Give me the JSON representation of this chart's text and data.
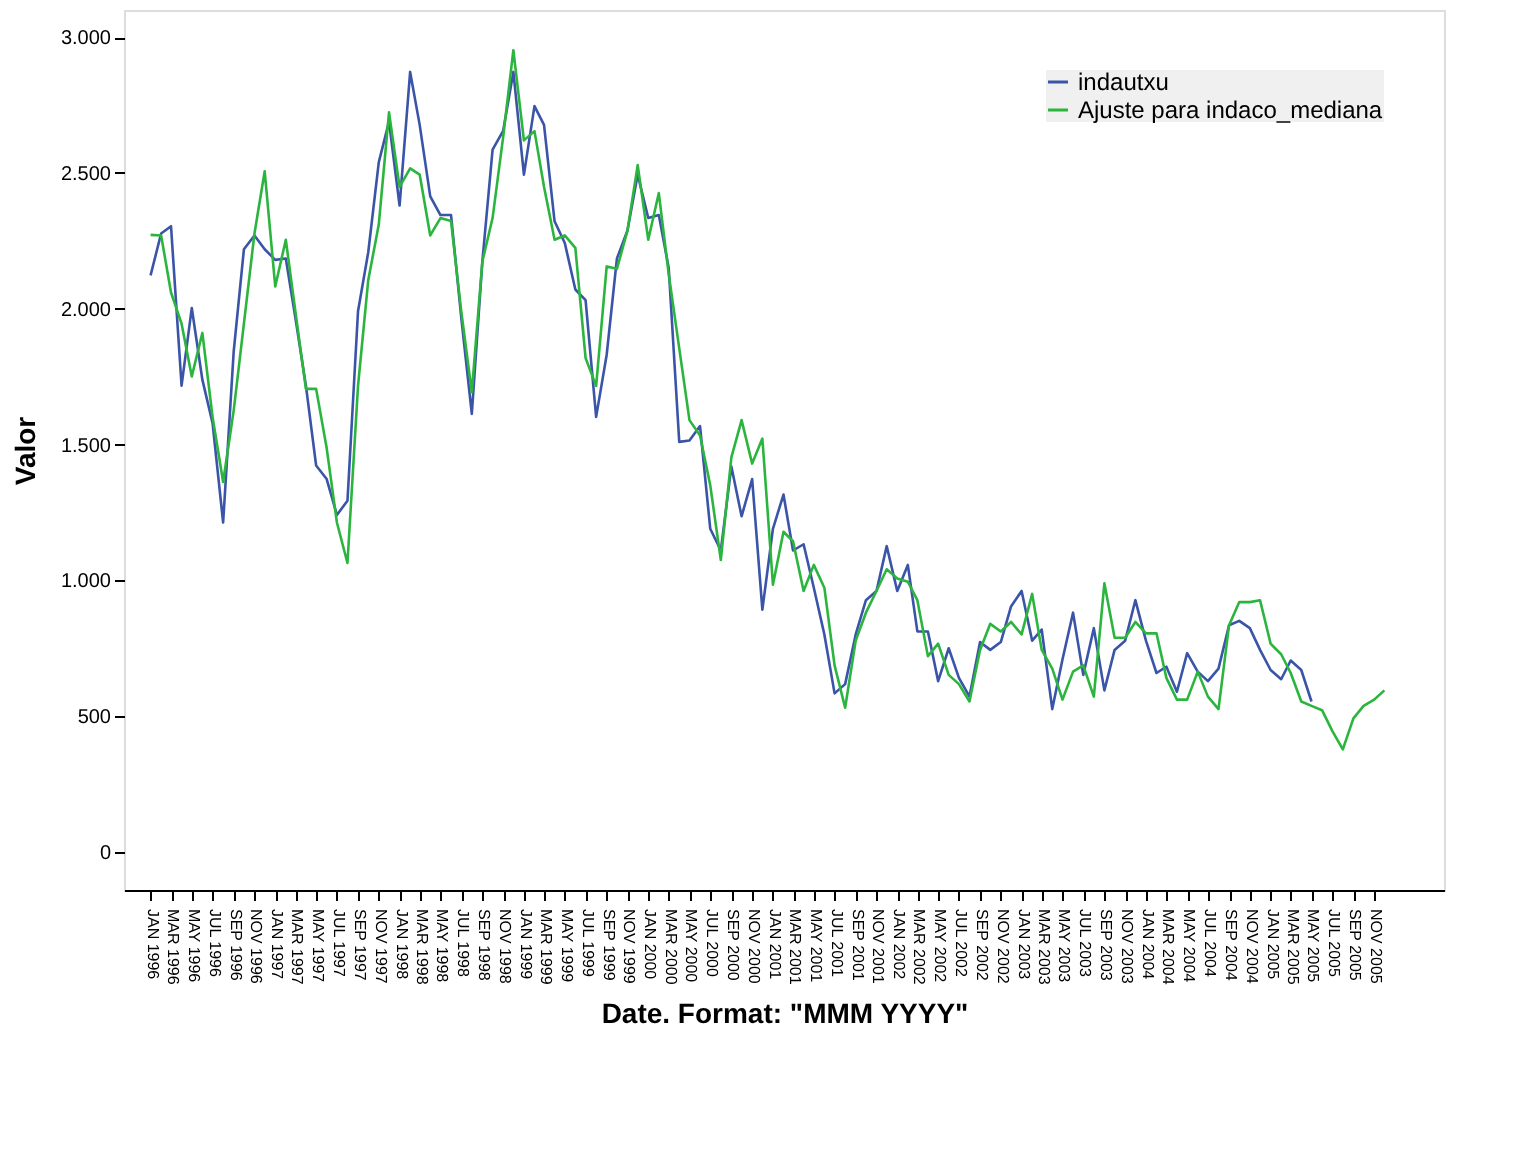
{
  "chart_data": {
    "type": "line",
    "xlabel": "Date.  Format:  \"MMM YYYY\"",
    "ylabel": "Valor",
    "x": [
      "1996-01",
      "1996-02",
      "1996-03",
      "1996-04",
      "1996-05",
      "1996-06",
      "1996-07",
      "1996-08",
      "1996-09",
      "1996-10",
      "1996-11",
      "1996-12",
      "1997-01",
      "1997-02",
      "1997-03",
      "1997-04",
      "1997-05",
      "1997-06",
      "1997-07",
      "1997-08",
      "1997-09",
      "1997-10",
      "1997-11",
      "1997-12",
      "1998-01",
      "1998-02",
      "1998-03",
      "1998-04",
      "1998-05",
      "1998-06",
      "1998-07",
      "1998-08",
      "1998-09",
      "1998-10",
      "1998-11",
      "1998-12",
      "1999-01",
      "1999-02",
      "1999-03",
      "1999-04",
      "1999-05",
      "1999-06",
      "1999-07",
      "1999-08",
      "1999-09",
      "1999-10",
      "1999-11",
      "1999-12",
      "2000-01",
      "2000-02",
      "2000-03",
      "2000-04",
      "2000-05",
      "2000-06",
      "2000-07",
      "2000-08",
      "2000-09",
      "2000-10",
      "2000-11",
      "2000-12",
      "2001-01",
      "2001-02",
      "2001-03",
      "2001-04",
      "2001-05",
      "2001-06",
      "2001-07",
      "2001-08",
      "2001-09",
      "2001-10",
      "2001-11",
      "2001-12",
      "2002-01",
      "2002-02",
      "2002-03",
      "2002-04",
      "2002-05",
      "2002-06",
      "2002-07",
      "2002-08",
      "2002-09",
      "2002-10",
      "2002-11",
      "2002-12",
      "2003-01",
      "2003-02",
      "2003-03",
      "2003-04",
      "2003-05",
      "2003-06",
      "2003-07",
      "2003-08",
      "2003-09",
      "2003-10",
      "2003-11",
      "2003-12",
      "2004-01",
      "2004-02",
      "2004-03",
      "2004-04",
      "2004-05",
      "2004-06",
      "2004-07",
      "2004-08",
      "2004-09",
      "2004-10",
      "2004-11",
      "2004-12",
      "2005-01",
      "2005-02",
      "2005-03",
      "2005-04",
      "2005-05",
      "2005-06",
      "2005-07",
      "2005-08",
      "2005-09",
      "2005-10",
      "2005-11",
      "2005-12"
    ],
    "series": [
      {
        "name": "indautxu",
        "color": "#3a54a8",
        "values": [
          2123,
          2277,
          2304,
          1717,
          2003,
          1739,
          1579,
          1213,
          1842,
          2219,
          2270,
          2219,
          2180,
          2185,
          1968,
          1717,
          1423,
          1373,
          1241,
          1293,
          1991,
          2208,
          2540,
          2689,
          2380,
          2872,
          2677,
          2414,
          2345,
          2345,
          1968,
          1613,
          2174,
          2586,
          2655,
          2872,
          2494,
          2746,
          2677,
          2322,
          2242,
          2071,
          2032,
          1602,
          1831,
          2185,
          2288,
          2494,
          2334,
          2345,
          2151,
          1510,
          1515,
          1568,
          1190,
          1110,
          1419,
          1236,
          1373,
          892,
          1190,
          1316,
          1110,
          1133,
          973,
          801,
          584,
          618,
          801,
          927,
          961,
          1126,
          961,
          1057,
          812,
          812,
          629,
          750,
          641,
          572,
          773,
          744,
          773,
          904,
          961,
          778,
          819,
          526,
          709,
          881,
          652,
          824,
          595,
          744,
          778,
          927,
          778,
          659,
          682,
          590,
          732,
          664,
          629,
          675,
          835,
          851,
          824,
          744,
          670,
          636,
          705,
          670,
          554,
          null,
          null,
          null,
          null,
          null,
          null,
          null
        ]
      },
      {
        "name": "Ajuste para indaco_mediana",
        "color": "#2cb53e",
        "values": [
          2272,
          2270,
          2060,
          1945,
          1751,
          1911,
          1602,
          1362,
          1625,
          1945,
          2277,
          2506,
          2082,
          2254,
          1991,
          1705,
          1705,
          1487,
          1213,
          1064,
          1716,
          2105,
          2311,
          2723,
          2449,
          2517,
          2494,
          2270,
          2334,
          2323,
          1991,
          1693,
          2174,
          2334,
          2632,
          2952,
          2620,
          2654,
          2449,
          2254,
          2270,
          2224,
          1819,
          1716,
          2156,
          2147,
          2288,
          2529,
          2254,
          2426,
          2128,
          1854,
          1590,
          1533,
          1350,
          1075,
          1453,
          1590,
          1430,
          1522,
          984,
          1179,
          1144,
          961,
          1057,
          973,
          687,
          531,
          778,
          881,
          961,
          1041,
          1007,
          995,
          927,
          721,
          767,
          652,
          618,
          554,
          744,
          840,
          812,
          847,
          801,
          950,
          744,
          675,
          561,
          664,
          687,
          572,
          989,
          789,
          789,
          847,
          805,
          805,
          641,
          561,
          561,
          664,
          572,
          526,
          835,
          920,
          920,
          927,
          767,
          728,
          659,
          554,
          538,
          522,
          446,
          378,
          492,
          538,
          561,
          595
        ]
      }
    ],
    "xlim": [
      "1995-10-15",
      "2006-05-25"
    ],
    "xticks": [
      {
        "value": "1996-01",
        "label": "JAN 1996"
      },
      {
        "value": "1996-03",
        "label": "MAR 1996"
      },
      {
        "value": "1996-05",
        "label": "MAY 1996"
      },
      {
        "value": "1996-07",
        "label": "JUL 1996"
      },
      {
        "value": "1996-09",
        "label": "SEP 1996"
      },
      {
        "value": "1996-11",
        "label": "NOV 1996"
      },
      {
        "value": "1997-01",
        "label": "JAN 1997"
      },
      {
        "value": "1997-03",
        "label": "MAR 1997"
      },
      {
        "value": "1997-05",
        "label": "MAY 1997"
      },
      {
        "value": "1997-07",
        "label": "JUL 1997"
      },
      {
        "value": "1997-09",
        "label": "SEP 1997"
      },
      {
        "value": "1997-11",
        "label": "NOV 1997"
      },
      {
        "value": "1998-01",
        "label": "JAN 1998"
      },
      {
        "value": "1998-03",
        "label": "MAR 1998"
      },
      {
        "value": "1998-05",
        "label": "MAY 1998"
      },
      {
        "value": "1998-07",
        "label": "JUL 1998"
      },
      {
        "value": "1998-09",
        "label": "SEP 1998"
      },
      {
        "value": "1998-11",
        "label": "NOV 1998"
      },
      {
        "value": "1999-01",
        "label": "JAN 1999"
      },
      {
        "value": "1999-03",
        "label": "MAR 1999"
      },
      {
        "value": "1999-05",
        "label": "MAY 1999"
      },
      {
        "value": "1999-07",
        "label": "JUL 1999"
      },
      {
        "value": "1999-09",
        "label": "SEP 1999"
      },
      {
        "value": "1999-11",
        "label": "NOV 1999"
      },
      {
        "value": "2000-01",
        "label": "JAN 2000"
      },
      {
        "value": "2000-03",
        "label": "MAR 2000"
      },
      {
        "value": "2000-05",
        "label": "MAY 2000"
      },
      {
        "value": "2000-07",
        "label": "JUL 2000"
      },
      {
        "value": "2000-09",
        "label": "SEP 2000"
      },
      {
        "value": "2000-11",
        "label": "NOV 2000"
      },
      {
        "value": "2001-01",
        "label": "JAN 2001"
      },
      {
        "value": "2001-03",
        "label": "MAR 2001"
      },
      {
        "value": "2001-05",
        "label": "MAY 2001"
      },
      {
        "value": "2001-07",
        "label": "JUL 2001"
      },
      {
        "value": "2001-09",
        "label": "SEP 2001"
      },
      {
        "value": "2001-11",
        "label": "NOV 2001"
      },
      {
        "value": "2002-01",
        "label": "JAN 2002"
      },
      {
        "value": "2002-03",
        "label": "MAR 2002"
      },
      {
        "value": "2002-05",
        "label": "MAY 2002"
      },
      {
        "value": "2002-07",
        "label": "JUL 2002"
      },
      {
        "value": "2002-09",
        "label": "SEP 2002"
      },
      {
        "value": "2002-11",
        "label": "NOV 2002"
      },
      {
        "value": "2003-01",
        "label": "JAN 2003"
      },
      {
        "value": "2003-03",
        "label": "MAR 2003"
      },
      {
        "value": "2003-05",
        "label": "MAY 2003"
      },
      {
        "value": "2003-07",
        "label": "JUL 2003"
      },
      {
        "value": "2003-09",
        "label": "SEP 2003"
      },
      {
        "value": "2003-11",
        "label": "NOV 2003"
      },
      {
        "value": "2004-01",
        "label": "JAN 2004"
      },
      {
        "value": "2004-03",
        "label": "MAR 2004"
      },
      {
        "value": "2004-05",
        "label": "MAY 2004"
      },
      {
        "value": "2004-07",
        "label": "JUL 2004"
      },
      {
        "value": "2004-09",
        "label": "SEP 2004"
      },
      {
        "value": "2004-11",
        "label": "NOV 2004"
      },
      {
        "value": "2005-01",
        "label": "JAN 2005"
      },
      {
        "value": "2005-03",
        "label": "MAR 2005"
      },
      {
        "value": "2005-05",
        "label": "MAY 2005"
      },
      {
        "value": "2005-07",
        "label": "JUL 2005"
      },
      {
        "value": "2005-09",
        "label": "SEP 2005"
      },
      {
        "value": "2005-11",
        "label": "NOV 2005"
      }
    ],
    "ylim": [
      -140,
      3100
    ],
    "yticks": [
      0,
      500,
      {
        "value": 1000,
        "label": "1.000"
      },
      {
        "value": 1500,
        "label": "1.500"
      },
      {
        "value": 2000,
        "label": "2.000"
      },
      {
        "value": 2500,
        "label": "2.500"
      },
      {
        "value": 3000,
        "label": "3.000"
      }
    ],
    "legend": "top right",
    "grid": false,
    "marker": "none",
    "line_style": "solid"
  }
}
